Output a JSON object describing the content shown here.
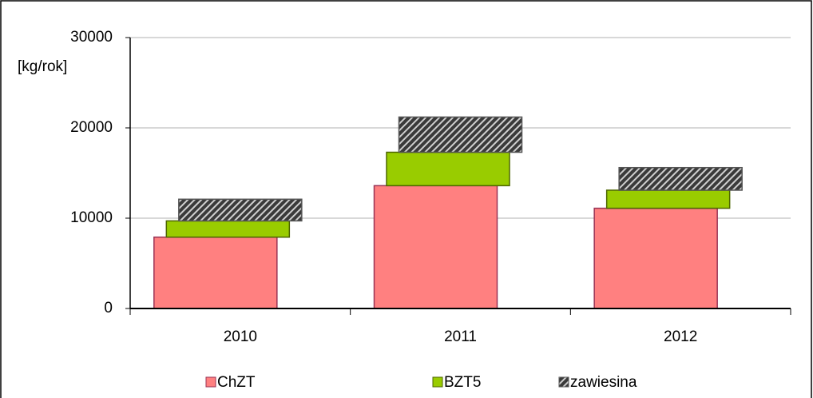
{
  "chart_data": {
    "type": "bar",
    "stacked": true,
    "y_axis_label": "[kg/rok]",
    "categories": [
      "2010",
      "2011",
      "2012"
    ],
    "series": [
      {
        "name": "ChZT",
        "color": "#ff8080",
        "values": [
          7900,
          13600,
          11100
        ]
      },
      {
        "name": "BZT5",
        "color": "#99cc00",
        "values": [
          1800,
          3700,
          2000
        ]
      },
      {
        "name": "zawiesina",
        "color": "#444444",
        "pattern": "hatch",
        "values": [
          2400,
          3900,
          2500
        ]
      }
    ],
    "ylim": [
      0,
      30000
    ],
    "yticks": [
      0,
      10000,
      20000,
      30000
    ],
    "grid": true,
    "legend": "bottom"
  }
}
